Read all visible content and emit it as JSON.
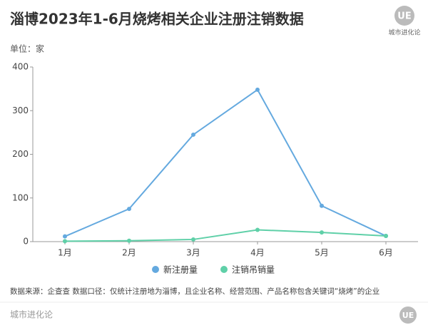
{
  "chart_data": {
    "type": "line",
    "title": "淄博2023年1-6月烧烤相关企业注册注销数据",
    "y_unit": "单位：家",
    "logo": "UE",
    "brand": "城市进化论",
    "source": "数据来源：企查查 数据口径：仅统计注册地为淄博，且企业名称、经营范围、产品名称包含关键词“烧烤”的企业",
    "categories": [
      "1月",
      "2月",
      "3月",
      "4月",
      "5月",
      "6月"
    ],
    "series": [
      {
        "name": "新注册量",
        "color": "#64a9df",
        "values": [
          12,
          75,
          245,
          348,
          82,
          13
        ]
      },
      {
        "name": "注销吊销量",
        "color": "#5fd0a8",
        "values": [
          1,
          2,
          5,
          27,
          21,
          13
        ]
      }
    ],
    "ylim": [
      0,
      400
    ],
    "yticks": [
      0,
      100,
      200,
      300,
      400
    ],
    "grid": false
  }
}
